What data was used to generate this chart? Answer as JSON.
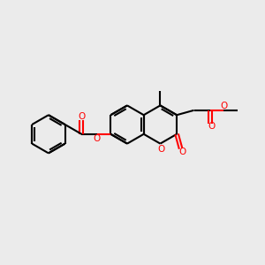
{
  "bg_color": "#ebebeb",
  "bond_color": "#000000",
  "oxygen_color": "#ff0000",
  "bond_width": 1.5,
  "figsize": [
    3.0,
    3.0
  ],
  "dpi": 100,
  "xlim": [
    0,
    10
  ],
  "ylim": [
    0,
    10
  ]
}
